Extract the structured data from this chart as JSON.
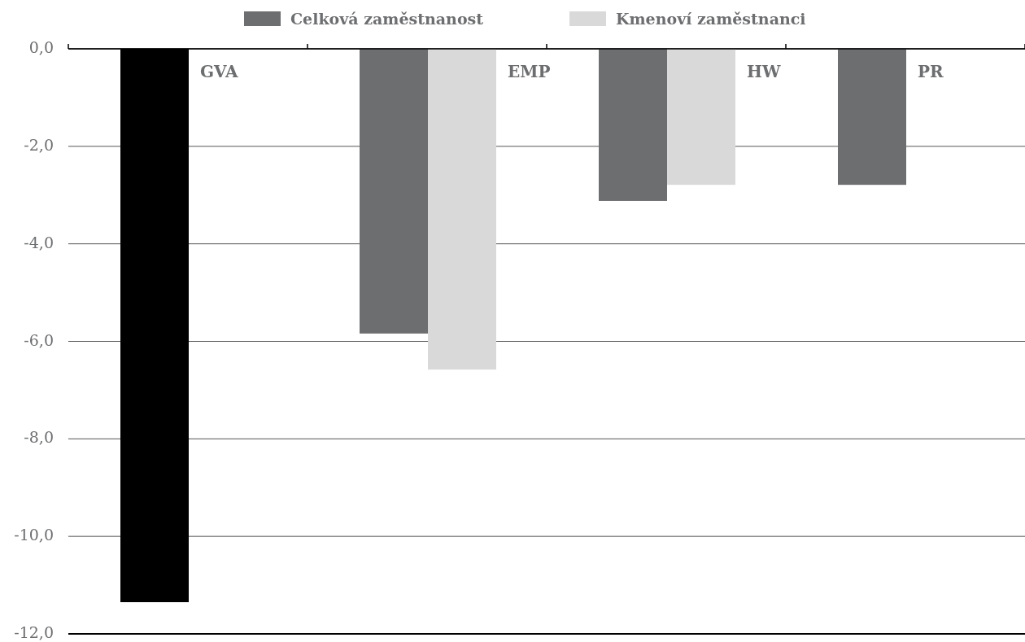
{
  "chart_data": {
    "type": "bar",
    "categories": [
      null,
      null,
      null,
      null
    ],
    "annotations": [
      "GVA",
      "EMP",
      "HW",
      "PR"
    ],
    "series": [
      {
        "color": "#000000",
        "values": [
          -11.35,
          null,
          null,
          null
        ]
      },
      {
        "name": "Celková zaměstnanost",
        "color": "#6d6e70",
        "values": [
          null,
          -5.84,
          -3.12,
          -2.79
        ]
      },
      {
        "name": "Kmenoví zaměstnanci",
        "color": "#d9d9da",
        "values": [
          null,
          -6.58,
          -2.79,
          null
        ]
      }
    ],
    "ylim": [
      -12,
      0
    ],
    "yticks": [
      {
        "value": 0,
        "label": "0,0"
      },
      {
        "value": -2,
        "label": "-2,0"
      },
      {
        "value": -4,
        "label": "-4,0"
      },
      {
        "value": -6,
        "label": "-6,0"
      },
      {
        "value": -8,
        "label": "-8,0"
      },
      {
        "value": -10,
        "label": "-10,0"
      },
      {
        "value": -12,
        "label": "-12,0"
      }
    ],
    "grid": "y",
    "legend": "top"
  }
}
